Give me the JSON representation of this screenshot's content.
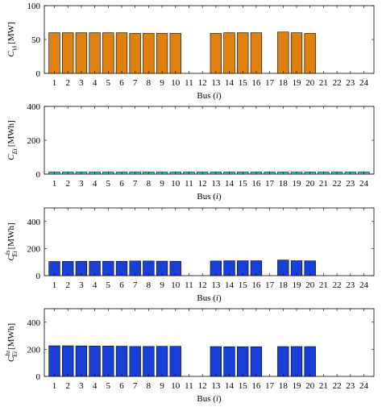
{
  "chart_data": [
    {
      "type": "bar",
      "categories": [
        "1",
        "2",
        "3",
        "4",
        "5",
        "6",
        "7",
        "8",
        "9",
        "10",
        "11",
        "12",
        "13",
        "14",
        "15",
        "16",
        "17",
        "18",
        "19",
        "20",
        "21",
        "22",
        "23",
        "24"
      ],
      "values": [
        60,
        60,
        60,
        60,
        60,
        60,
        59,
        59,
        59,
        59,
        0,
        0,
        59,
        60,
        60,
        60,
        0,
        61,
        60,
        59,
        0,
        0,
        0,
        0
      ],
      "ylim": [
        0,
        100
      ],
      "yticks": [
        "0",
        "50",
        "100"
      ],
      "ytick_values": [
        0,
        50,
        100
      ],
      "ylabel": {
        "main": "C",
        "sub": "Vi",
        "unit": "[MW]"
      },
      "xlabel": {
        "main": "Bus (",
        "var": "i",
        "close": ")"
      },
      "color": "#e0810f",
      "grid": false
    },
    {
      "type": "bar",
      "categories": [
        "1",
        "2",
        "3",
        "4",
        "5",
        "6",
        "7",
        "8",
        "9",
        "10",
        "11",
        "12",
        "13",
        "14",
        "15",
        "16",
        "17",
        "18",
        "19",
        "20",
        "21",
        "22",
        "23",
        "24"
      ],
      "values": [
        12,
        12,
        12,
        12,
        12,
        12,
        12,
        12,
        12,
        12,
        12,
        12,
        12,
        12,
        12,
        12,
        12,
        12,
        12,
        12,
        12,
        12,
        12,
        12
      ],
      "ylim": [
        0,
        400
      ],
      "yticks": [
        "0",
        "200",
        "400"
      ],
      "ytick_values": [
        0,
        200,
        400
      ],
      "ylabel": {
        "main": "C",
        "sub": "Ei",
        "unit": "[MWh]"
      },
      "xlabel": {
        "main": "Bus (",
        "var": "i",
        "close": ")"
      },
      "color": "#2fd3c6",
      "grid": false
    },
    {
      "type": "bar",
      "categories": [
        "1",
        "2",
        "3",
        "4",
        "5",
        "6",
        "7",
        "8",
        "9",
        "10",
        "11",
        "12",
        "13",
        "14",
        "15",
        "16",
        "17",
        "18",
        "19",
        "20",
        "21",
        "22",
        "23",
        "24"
      ],
      "values": [
        104,
        105,
        106,
        106,
        106,
        106,
        108,
        108,
        107,
        106,
        0,
        0,
        108,
        110,
        110,
        110,
        0,
        115,
        110,
        109,
        0,
        0,
        0,
        0
      ],
      "ylim": [
        0,
        500
      ],
      "yticks": [
        "0",
        "200",
        "400"
      ],
      "ytick_values": [
        0,
        200,
        400
      ],
      "ylabel": {
        "main": "C",
        "sub": "Ei",
        "sup": "fs",
        "unit": "[MWh]"
      },
      "xlabel": {
        "main": "Bus (",
        "var": "i",
        "close": ")"
      },
      "color": "#1840d8",
      "grid": false
    },
    {
      "type": "bar",
      "categories": [
        "1",
        "2",
        "3",
        "4",
        "5",
        "6",
        "7",
        "8",
        "9",
        "10",
        "11",
        "12",
        "13",
        "14",
        "15",
        "16",
        "17",
        "18",
        "19",
        "20",
        "21",
        "22",
        "23",
        "24"
      ],
      "values": [
        226,
        226,
        225,
        224,
        224,
        223,
        221,
        221,
        222,
        222,
        0,
        0,
        220,
        219,
        219,
        219,
        0,
        220,
        220,
        220,
        0,
        0,
        0,
        0
      ],
      "ylim": [
        0,
        500
      ],
      "yticks": [
        "0",
        "200",
        "400"
      ],
      "ytick_values": [
        0,
        200,
        400
      ],
      "ylabel": {
        "main": "C",
        "sub": "Ei",
        "sup": "fu",
        "unit": "[MWh]"
      },
      "xlabel": {
        "main": "Bus (",
        "var": "i",
        "close": ")"
      },
      "color": "#1840d8",
      "grid": false
    }
  ]
}
